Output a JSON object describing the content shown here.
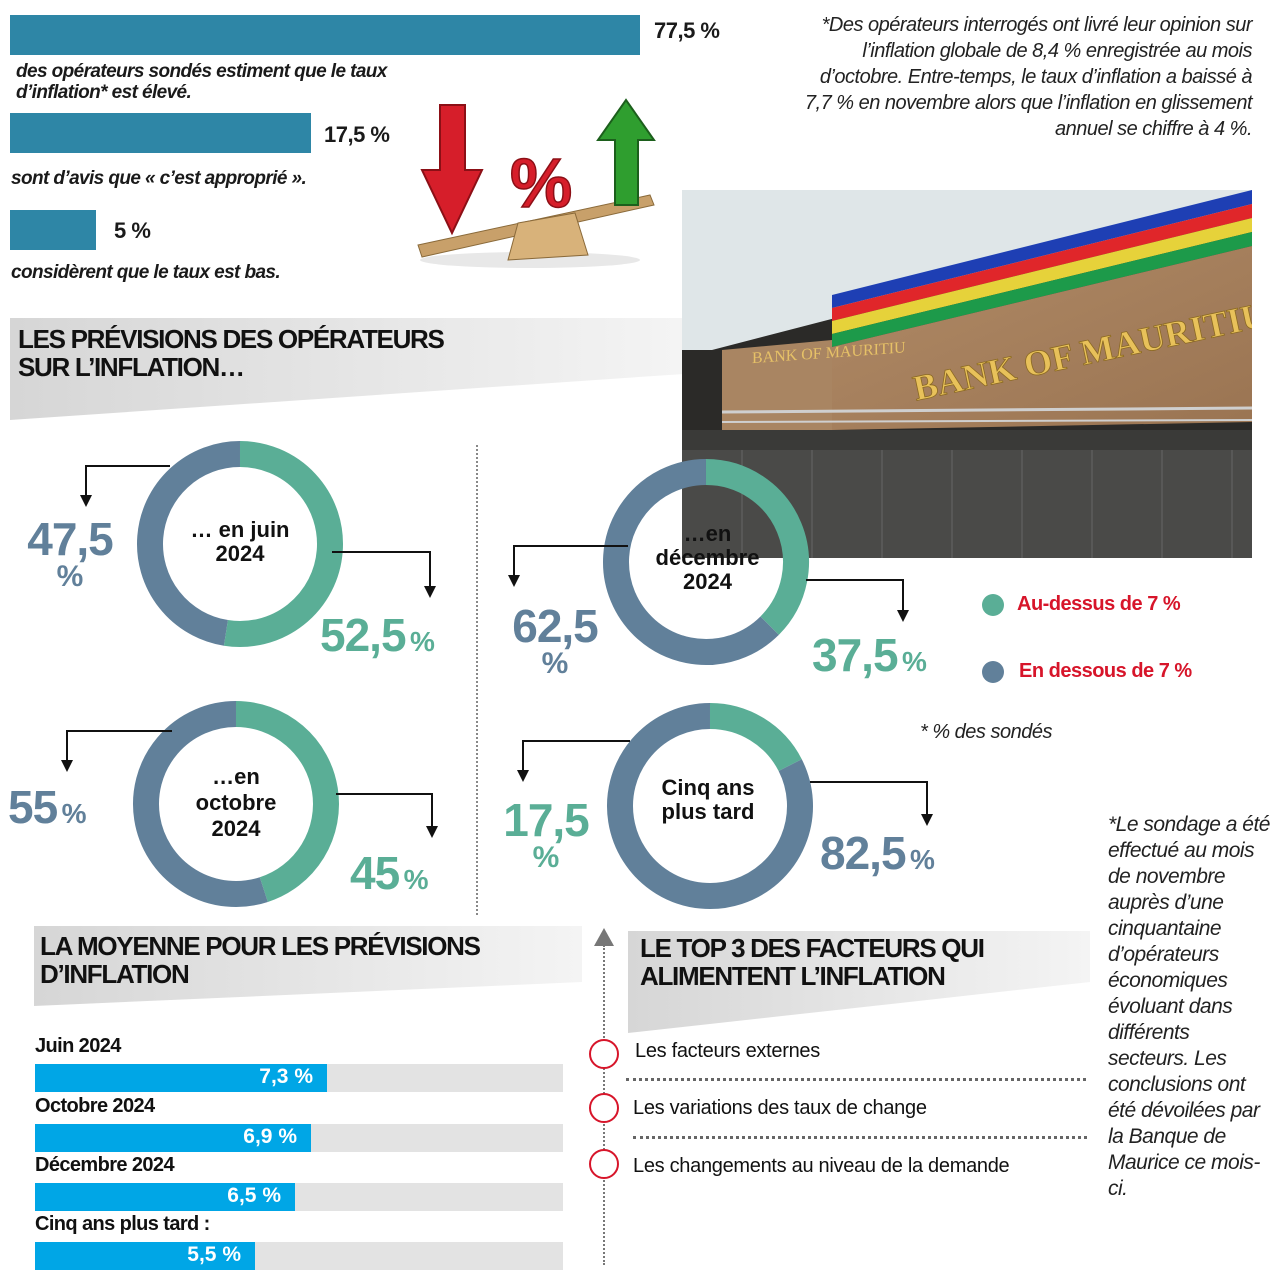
{
  "opinion": {
    "bars": [
      {
        "value_pct": 77.5,
        "value_label": "77,5 %",
        "caption": "des opérateurs sondés estiment que le taux d’inflation* est élevé."
      },
      {
        "value_pct": 17.5,
        "value_label": "17,5 %",
        "caption": "sont d’avis que « c’est approprié »."
      },
      {
        "value_pct": 5,
        "value_label": "5 %",
        "caption": "considèrent que le taux est bas."
      }
    ],
    "footnote": "*Des opérateurs interrogés ont livré leur opinion sur l’inflation globale de 8,4 % enregistrée au mois d’octobre. Entre-temps, le taux d’inflation a baissé à 7,7 % en novembre alors que l’inflation en glissement annuel se chiffre à 4 %."
  },
  "illustration": {
    "symbol": "%"
  },
  "photo": {
    "sign_text": "BANK OF MAURITIUS",
    "small_sign": "BANK OF MAURITIU"
  },
  "forecast_section": {
    "title_line1": "LES PRÉVISIONS DES OPÉRATEURS",
    "title_line2": "SUR L’INFLATION…"
  },
  "legend": {
    "above": {
      "label": "Au-dessus de 7 %",
      "color": "#5aae96"
    },
    "below": {
      "label": "En dessous de 7 %",
      "color": "#61809a"
    },
    "note": "* % des sondés"
  },
  "chart_data": [
    {
      "type": "pie",
      "title_lines": [
        "… en juin",
        "2024"
      ],
      "categories": [
        "Au-dessus de 7 %",
        "En dessous de 7 %"
      ],
      "values": [
        52.5,
        47.5
      ],
      "labels": {
        "above": "52,5",
        "below_num": "47,5",
        "below_unit": "%"
      }
    },
    {
      "type": "pie",
      "title_lines": [
        "…en",
        "décembre",
        "2024"
      ],
      "categories": [
        "Au-dessus de 7 %",
        "En dessous de 7 %"
      ],
      "values": [
        37.5,
        62.5
      ],
      "labels": {
        "above": "37,5",
        "below_num": "62,5",
        "below_unit": "%"
      }
    },
    {
      "type": "pie",
      "title_lines": [
        "…en",
        "octobre",
        "2024"
      ],
      "categories": [
        "Au-dessus de 7 %",
        "En dessous de 7 %"
      ],
      "values": [
        45,
        55
      ],
      "labels": {
        "above": "45",
        "below_num": "55",
        "below_unit": "%"
      }
    },
    {
      "type": "pie",
      "title_lines": [
        "Cinq ans",
        "plus tard"
      ],
      "categories": [
        "Au-dessus de 7 %",
        "En dessous de 7 %"
      ],
      "values": [
        17.5,
        82.5
      ],
      "labels": {
        "above": "17,5",
        "below_num": "82,5",
        "below_unit": "%"
      }
    }
  ],
  "pct_sign": "%",
  "average_section": {
    "title_line1": "LA MOYENNE POUR LES PRÉVISIONS",
    "title_line2": "D’INFLATION",
    "chart": {
      "type": "bar",
      "categories": [
        "Juin 2024",
        "Octobre 2024",
        "Décembre 2024",
        "Cinq ans plus tard :"
      ],
      "values": [
        7.3,
        6.9,
        6.5,
        5.5
      ],
      "value_labels": [
        "7,3 %",
        "6,9 %",
        "6,5 %",
        "5,5 %"
      ]
    }
  },
  "factors_section": {
    "title_line1": "LE TOP 3 DES FACTEURS QUI",
    "title_line2": "ALIMENTENT L’INFLATION",
    "items": [
      "Les facteurs externes",
      "Les variations des taux de change",
      "Les changements au niveau de la demande"
    ]
  },
  "survey_note": "*Le sondage a été effectué au mois de novembre auprès d’une cinquantaine d’opérateurs économiques évoluant dans différents secteurs. Les conclusions ont été dévoilées par la Banque de Maurice ce mois-ci."
}
